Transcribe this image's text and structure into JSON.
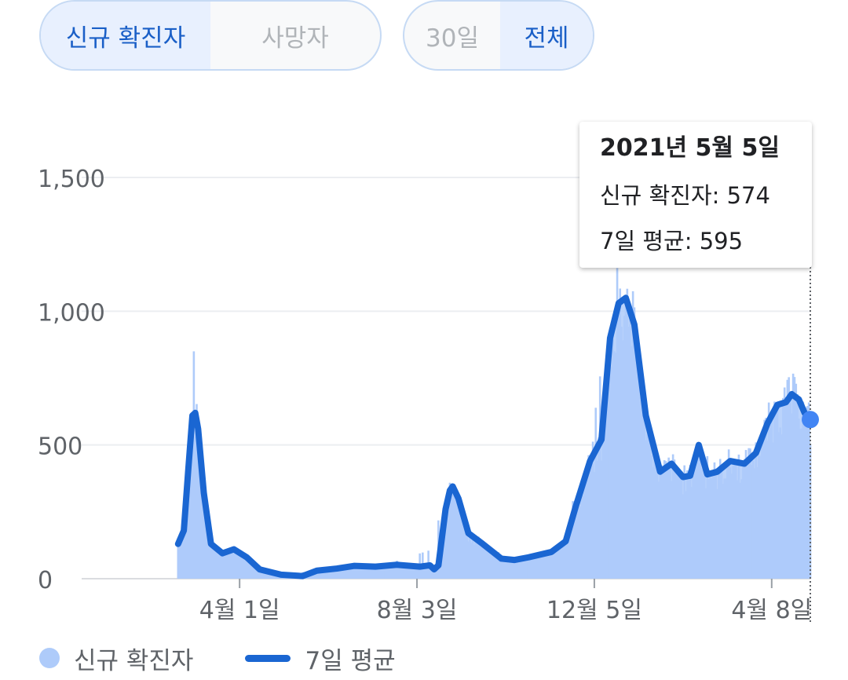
{
  "toggles": {
    "metric": [
      {
        "label": "신규 확진자",
        "active": true
      },
      {
        "label": "사망자",
        "active": false
      }
    ],
    "range": [
      {
        "label": "30일",
        "active": false
      },
      {
        "label": "전체",
        "active": true
      }
    ]
  },
  "tooltip": {
    "date": "2021년 5월 5일",
    "cases_line": "신규 확진자: 574",
    "avg_line": "7일 평균: 595"
  },
  "legend": {
    "cases": "신규 확진자",
    "average": "7일 평균"
  },
  "colors": {
    "bars": "#aecbfa",
    "line": "#1a66d2",
    "active_toggle": "#1a5fc7",
    "highlight_point": "#4285f4"
  },
  "chart_data": {
    "type": "bar",
    "title": "",
    "xlabel": "",
    "ylabel": "",
    "ylim": [
      0,
      1650
    ],
    "y_ticks": [
      0,
      500,
      1000,
      1500
    ],
    "y_tick_labels": [
      "0",
      "500",
      "1,000",
      "1,500"
    ],
    "x_range": [
      "2020-01-20",
      "2021-05-05"
    ],
    "x_ticks": [
      {
        "date": "2020-04-01",
        "label": "4월 1일"
      },
      {
        "date": "2020-08-03",
        "label": "8월 3일"
      },
      {
        "date": "2020-12-05",
        "label": "12월 5일"
      },
      {
        "date": "2021-04-08",
        "label": "4월 8일"
      }
    ],
    "grid": true,
    "legend_position": "bottom-left",
    "series": [
      {
        "name": "신규 확진자",
        "type": "bar",
        "description_points": [
          [
            "2020-02-18",
            30
          ],
          [
            "2020-02-22",
            200
          ],
          [
            "2020-02-26",
            430
          ],
          [
            "2020-02-29",
            850
          ],
          [
            "2020-03-03",
            600
          ],
          [
            "2020-03-08",
            300
          ],
          [
            "2020-03-14",
            110
          ],
          [
            "2020-03-25",
            100
          ],
          [
            "2020-04-10",
            40
          ],
          [
            "2020-05-10",
            20
          ],
          [
            "2020-06-10",
            45
          ],
          [
            "2020-07-10",
            50
          ],
          [
            "2020-08-14",
            110
          ],
          [
            "2020-08-24",
            380
          ],
          [
            "2020-08-28",
            440
          ],
          [
            "2020-09-10",
            150
          ],
          [
            "2020-10-10",
            70
          ],
          [
            "2020-11-10",
            110
          ],
          [
            "2020-11-25",
            380
          ],
          [
            "2020-12-05",
            600
          ],
          [
            "2020-12-16",
            1030
          ],
          [
            "2020-12-24",
            1240
          ],
          [
            "2021-01-03",
            850
          ],
          [
            "2021-01-12",
            500
          ],
          [
            "2021-01-25",
            480
          ],
          [
            "2021-02-08",
            300
          ],
          [
            "2021-02-16",
            620
          ],
          [
            "2021-02-26",
            350
          ],
          [
            "2021-03-15",
            450
          ],
          [
            "2021-04-05",
            550
          ],
          [
            "2021-04-16",
            700
          ],
          [
            "2021-04-22",
            780
          ],
          [
            "2021-04-30",
            600
          ],
          [
            "2021-05-05",
            574
          ]
        ]
      },
      {
        "name": "7일 평균",
        "type": "line",
        "points": [
          [
            "2020-02-18",
            130
          ],
          [
            "2020-02-22",
            180
          ],
          [
            "2020-02-25",
            400
          ],
          [
            "2020-02-28",
            610
          ],
          [
            "2020-03-01",
            620
          ],
          [
            "2020-03-03",
            560
          ],
          [
            "2020-03-07",
            320
          ],
          [
            "2020-03-12",
            130
          ],
          [
            "2020-03-20",
            95
          ],
          [
            "2020-03-28",
            110
          ],
          [
            "2020-04-06",
            80
          ],
          [
            "2020-04-15",
            35
          ],
          [
            "2020-04-30",
            15
          ],
          [
            "2020-05-15",
            10
          ],
          [
            "2020-05-25",
            30
          ],
          [
            "2020-06-08",
            38
          ],
          [
            "2020-06-20",
            48
          ],
          [
            "2020-07-05",
            45
          ],
          [
            "2020-07-20",
            52
          ],
          [
            "2020-08-05",
            45
          ],
          [
            "2020-08-12",
            50
          ],
          [
            "2020-08-15",
            35
          ],
          [
            "2020-08-18",
            50
          ],
          [
            "2020-08-23",
            260
          ],
          [
            "2020-08-26",
            330
          ],
          [
            "2020-08-28",
            345
          ],
          [
            "2020-09-01",
            300
          ],
          [
            "2020-09-08",
            170
          ],
          [
            "2020-09-18",
            130
          ],
          [
            "2020-10-01",
            75
          ],
          [
            "2020-10-10",
            70
          ],
          [
            "2020-10-20",
            80
          ],
          [
            "2020-11-05",
            100
          ],
          [
            "2020-11-15",
            140
          ],
          [
            "2020-11-22",
            270
          ],
          [
            "2020-12-02",
            440
          ],
          [
            "2020-12-10",
            520
          ],
          [
            "2020-12-16",
            900
          ],
          [
            "2020-12-22",
            1030
          ],
          [
            "2020-12-27",
            1050
          ],
          [
            "2021-01-02",
            950
          ],
          [
            "2021-01-10",
            610
          ],
          [
            "2021-01-20",
            400
          ],
          [
            "2021-01-28",
            430
          ],
          [
            "2021-02-05",
            380
          ],
          [
            "2021-02-10",
            385
          ],
          [
            "2021-02-16",
            500
          ],
          [
            "2021-02-22",
            390
          ],
          [
            "2021-03-01",
            400
          ],
          [
            "2021-03-10",
            440
          ],
          [
            "2021-03-20",
            430
          ],
          [
            "2021-03-28",
            470
          ],
          [
            "2021-04-05",
            580
          ],
          [
            "2021-04-12",
            650
          ],
          [
            "2021-04-18",
            660
          ],
          [
            "2021-04-22",
            690
          ],
          [
            "2021-04-27",
            670
          ],
          [
            "2021-05-01",
            620
          ],
          [
            "2021-05-05",
            595
          ]
        ]
      }
    ],
    "highlight": {
      "date": "2021-05-05",
      "value": 595
    }
  }
}
